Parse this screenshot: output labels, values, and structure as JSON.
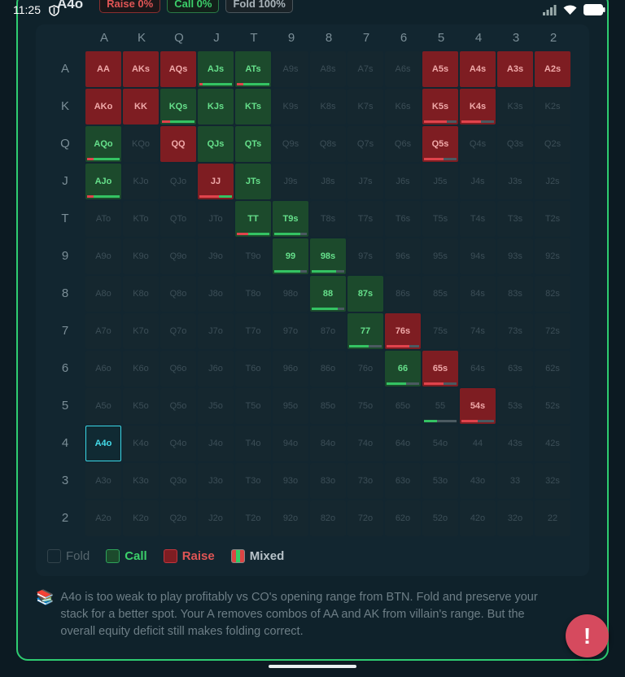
{
  "status": {
    "time": "11:25"
  },
  "header": {
    "hand": "A4o",
    "raise_pill": "Raise 0%",
    "call_pill": "Call 0%",
    "fold_pill": "Fold 100%"
  },
  "ranks": [
    "A",
    "K",
    "Q",
    "J",
    "T",
    "9",
    "8",
    "7",
    "6",
    "5",
    "4",
    "3",
    "2"
  ],
  "selected_hand": "A4o",
  "actions": {
    "AA": "raise",
    "AKs": "raise",
    "AQs": "raise",
    "AJs": "call",
    "ATs": "call",
    "A5s": "raise",
    "A4s": "raise",
    "A3s": "raise",
    "A2s": "raise",
    "AKo": "raise",
    "KK": "raise",
    "KQs": "call",
    "KJs": "call",
    "KTs": "call",
    "K5s": "raise",
    "K4s": "raise",
    "AQo": "call",
    "QQ": "raise",
    "QJs": "call",
    "QTs": "call",
    "Q5s": "raise",
    "AJo": "call",
    "JJ": "raise",
    "JTs": "call",
    "TT": "call",
    "T9s": "call",
    "99": "call",
    "98s": "call",
    "88": "call",
    "87s": "call",
    "77": "call",
    "76s": "raise",
    "66": "call",
    "65s": "raise",
    "54s": "raise"
  },
  "mix_bars": {
    "KQs": [
      0.25,
      0.75,
      0
    ],
    "K5s": [
      0.7,
      0,
      0.3
    ],
    "K4s": [
      0.6,
      0,
      0.4
    ],
    "AQo": [
      0.2,
      0.8,
      0
    ],
    "Q5s": [
      0.6,
      0,
      0.4
    ],
    "AJo": [
      0.2,
      0.8,
      0
    ],
    "JJ": [
      0.6,
      0.4,
      0
    ],
    "TT": [
      0.35,
      0.65,
      0
    ],
    "T9s": [
      0,
      0.8,
      0.2
    ],
    "99": [
      0,
      0.8,
      0.2
    ],
    "98s": [
      0,
      0.75,
      0.25
    ],
    "88": [
      0,
      0.8,
      0.2
    ],
    "77": [
      0,
      0.6,
      0.4
    ],
    "76s": [
      0.7,
      0,
      0.3
    ],
    "66": [
      0,
      0.6,
      0.4
    ],
    "65s": [
      0.6,
      0,
      0.4
    ],
    "55": [
      0,
      0.4,
      0.6
    ],
    "54s": [
      0.5,
      0,
      0.5
    ],
    "ATs": [
      0.2,
      0.8,
      0
    ],
    "AJs": [
      0.1,
      0.9,
      0
    ]
  },
  "legend": {
    "fold": "Fold",
    "call": "Call",
    "raise": "Raise",
    "mixed": "Mixed"
  },
  "explanation": "A4o is too weak to play profitably vs CO's opening range from BTN. Fold and preserve your stack for a better spot. Your A removes combos of AA and AK from villain's range. But the overall equity deficit still makes folding correct.",
  "fab_label": "!"
}
